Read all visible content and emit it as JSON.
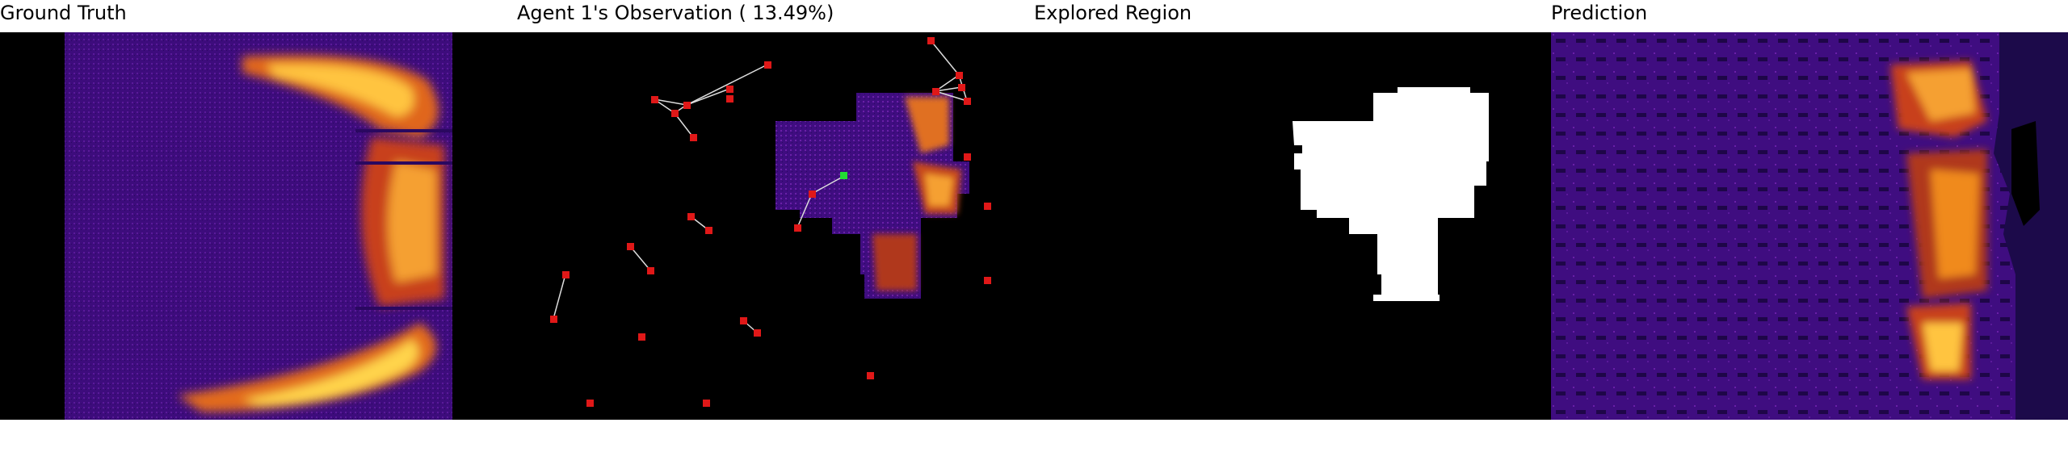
{
  "panels": {
    "ground_truth": {
      "title": "Ground Truth"
    },
    "observation": {
      "title": "Agent 1's Observation ( 13.49%)"
    },
    "explored": {
      "title": "Explored Region"
    },
    "prediction": {
      "title": "Prediction"
    }
  },
  "colors": {
    "background": "#000000",
    "field_dark": "#3b0a7a",
    "field_mid": "#6a1fa8",
    "heat_orange": "#f08a1a",
    "heat_yellow": "#ffd34a",
    "explored": "#ffffff",
    "agent_red": "#e01818",
    "agent_green": "#22dd33",
    "link": "#dddddd"
  },
  "icons": {
    "other_agent": "red-square-marker",
    "self_agent": "green-square-marker"
  }
}
